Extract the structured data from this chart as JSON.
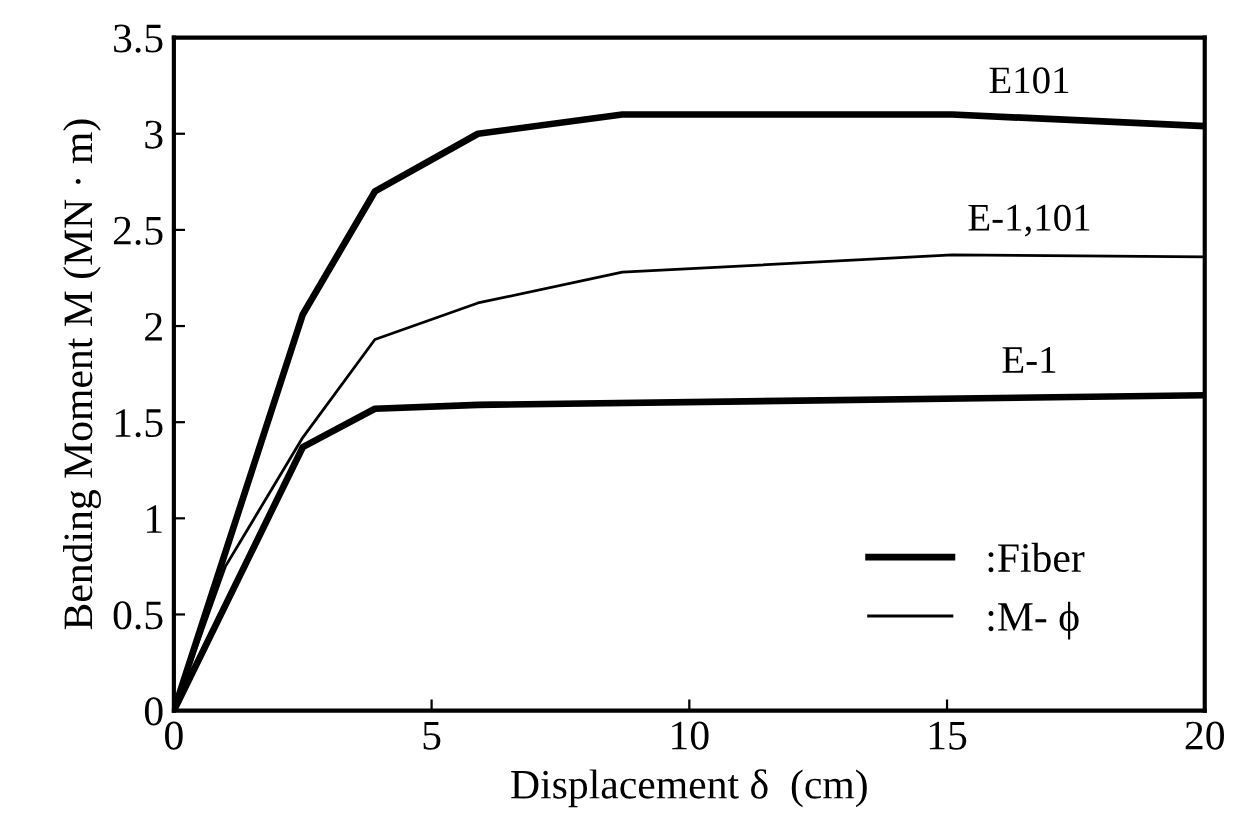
{
  "chart_data": {
    "type": "line",
    "xlabel": "Displacement δ  (cm)",
    "ylabel": "Bending Moment M (MN · m)",
    "xlim": [
      0,
      20
    ],
    "xticks": [
      0,
      5,
      10,
      15,
      20
    ],
    "ylim": [
      0,
      3.5
    ],
    "yticks": [
      0,
      0.5,
      1,
      1.5,
      2,
      2.5,
      3,
      3.5
    ],
    "grid": false,
    "legend": "bottom right",
    "marker": "none",
    "line_style": "solid",
    "series": [
      {
        "name": ":Fiber",
        "color": "#000000",
        "x": [
          0,
          2.5,
          3.9,
          5.9,
          8.7,
          15.1,
          20
        ],
        "values": [
          0,
          2.06,
          2.7,
          3.0,
          3.1,
          3.1,
          3.04
        ]
      },
      {
        "name": ":M- ϕ",
        "color": "#000000",
        "x": [
          0,
          1.0,
          2.5,
          3.9,
          5.9,
          8.7,
          15.1,
          20
        ],
        "values": [
          0,
          0.75,
          1.42,
          1.93,
          2.12,
          2.28,
          2.37,
          2.36
        ]
      },
      {
        "color": "#000000",
        "x": [
          0,
          2.5,
          3.9,
          5.9,
          20
        ],
        "values": [
          0,
          1.37,
          1.57,
          1.59,
          1.64
        ]
      }
    ],
    "annotations": [
      "E101",
      "E-1,101",
      "E-1"
    ]
  }
}
